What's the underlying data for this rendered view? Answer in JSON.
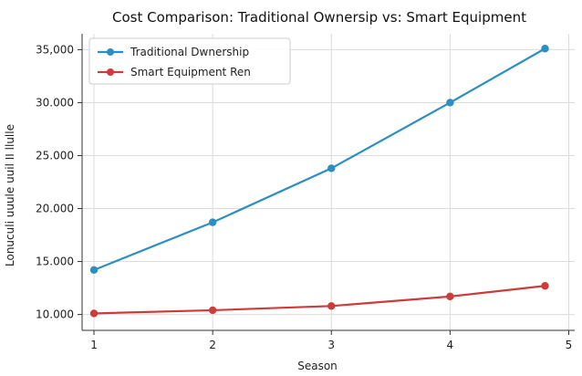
{
  "chart_data": {
    "type": "line",
    "title": "Cost Comparison: Traditional Ownersip vs: Smart Equipment",
    "xlabel": "Season",
    "ylabel": "Lonuculi uuule uuil II llulle",
    "xlim": [
      0.9,
      5.05
    ],
    "ylim": [
      8500,
      36500
    ],
    "xticks": [
      1,
      2,
      3,
      4,
      5
    ],
    "xtick_labels": [
      "1",
      "2",
      "3",
      "4",
      "5"
    ],
    "yticks": [
      10000,
      15000,
      20000,
      25000,
      30000,
      35000
    ],
    "ytick_labels": [
      "10.000",
      "15.000",
      "20.000",
      "25.000",
      "30.000",
      "35,000"
    ],
    "grid": true,
    "legend_position": "top-left",
    "series": [
      {
        "name": "Traditional Dwnership",
        "color": "#2d8fc1",
        "x": [
          1,
          2,
          3,
          4,
          4.8
        ],
        "y": [
          14200,
          18700,
          23800,
          30000,
          35100
        ]
      },
      {
        "name": "Smart Equipment Ren",
        "color": "#cf3a3a",
        "x": [
          1,
          2,
          3,
          4,
          4.8
        ],
        "y": [
          10100,
          10400,
          10800,
          11700,
          12700
        ]
      }
    ]
  }
}
